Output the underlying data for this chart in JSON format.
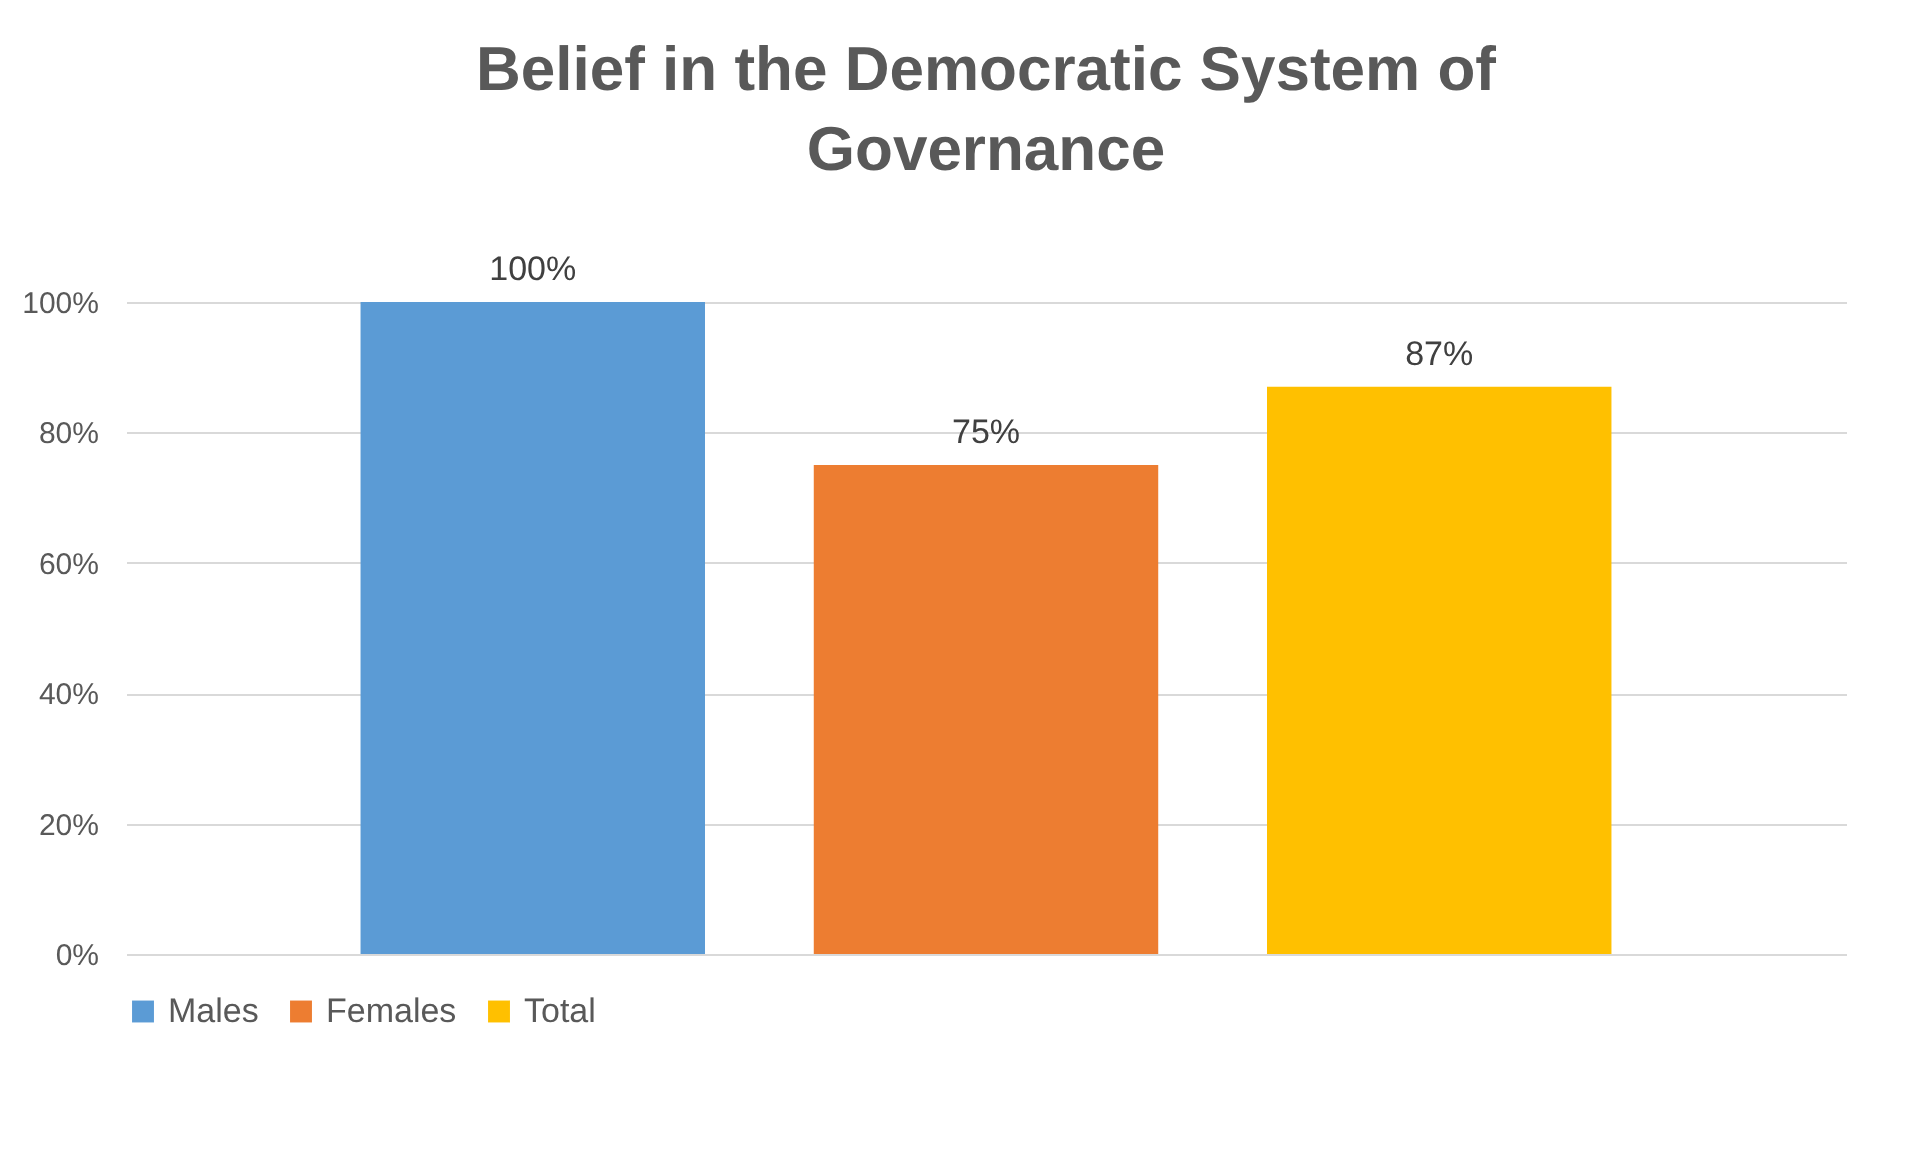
{
  "chart_data": {
    "type": "bar",
    "title": "Belief in the Democratic System of Governance",
    "categories": [
      null
    ],
    "series": [
      {
        "name": "Males",
        "color": "#5b9bd5",
        "values": [
          100
        ],
        "value_labels": [
          "100%"
        ]
      },
      {
        "name": "Females",
        "color": "#ed7d31",
        "values": [
          75
        ],
        "value_labels": [
          "75%"
        ]
      },
      {
        "name": "Total",
        "color": "#ffc000",
        "values": [
          87
        ],
        "value_labels": [
          "87%"
        ]
      }
    ],
    "ylim": [
      0,
      100
    ],
    "yticks": [
      {
        "value": 0,
        "label": "0%"
      },
      {
        "value": 20,
        "label": "20%"
      },
      {
        "value": 40,
        "label": "40%"
      },
      {
        "value": 60,
        "label": "60%"
      },
      {
        "value": 80,
        "label": "80%"
      },
      {
        "value": 100,
        "label": "100%"
      }
    ],
    "grid": "y",
    "legend": "bottom"
  }
}
